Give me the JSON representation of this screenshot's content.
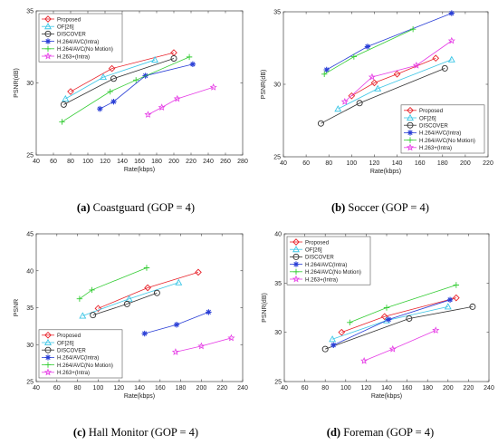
{
  "figure": {
    "captions": [
      {
        "label": "(a)",
        "text": "Coastguard (GOP = 4)"
      },
      {
        "label": "(b)",
        "text": "Soccer (GOP = 4)"
      },
      {
        "label": "(c)",
        "text": "Hall Monitor (GOP = 4)"
      },
      {
        "label": "(d)",
        "text": "Foreman (GOP = 4)"
      }
    ]
  },
  "series_styles": [
    {
      "name": "Proposed",
      "color": "#e8232b",
      "marker": "diamond"
    },
    {
      "name": "OF[26]",
      "color": "#3cc6e6",
      "marker": "triangle"
    },
    {
      "name": "DISCOVER",
      "color": "#333333",
      "marker": "circle"
    },
    {
      "name": "H.264/AVC(Intra)",
      "color": "#2a3fd6",
      "marker": "star"
    },
    {
      "name": "H.264/AVC(No Motion)",
      "color": "#33cc33",
      "marker": "plus"
    },
    {
      "name": "H.263+(Intra)",
      "color": "#e63ce6",
      "marker": "pentagram"
    }
  ],
  "chart_data": [
    {
      "type": "line",
      "title": "",
      "xlabel": "Rate(kbps)",
      "ylabel": "PSNR(dB)",
      "xlim": [
        40,
        280
      ],
      "ylim": [
        25,
        35
      ],
      "xticks": [
        "40",
        "60",
        "80",
        "100",
        "120",
        "140",
        "160",
        "180",
        "200",
        "220",
        "240",
        "260",
        "280"
      ],
      "yticks": [
        "25",
        "30",
        "35"
      ],
      "legend_position": "top-left",
      "series": [
        {
          "name": "Proposed",
          "x": [
            80,
            128,
            200
          ],
          "y": [
            29.4,
            31.0,
            32.1
          ]
        },
        {
          "name": "OF[26]",
          "x": [
            74,
            118,
            178
          ],
          "y": [
            28.9,
            30.4,
            31.6
          ]
        },
        {
          "name": "DISCOVER",
          "x": [
            72,
            130,
            200
          ],
          "y": [
            28.5,
            30.3,
            31.7
          ]
        },
        {
          "name": "H.264/AVC(Intra)",
          "x": [
            114,
            130,
            167,
            222
          ],
          "y": [
            28.2,
            28.7,
            30.5,
            31.3
          ]
        },
        {
          "name": "H.264/AVC(No Motion)",
          "x": [
            70,
            126,
            156,
            218
          ],
          "y": [
            27.3,
            29.4,
            30.2,
            31.8
          ]
        },
        {
          "name": "H.263+(Intra)",
          "x": [
            170,
            186,
            204,
            246
          ],
          "y": [
            27.8,
            28.3,
            28.9,
            29.7
          ]
        }
      ]
    },
    {
      "type": "line",
      "title": "",
      "xlabel": "Rate(kbps)",
      "ylabel": "PSNR(dB)",
      "xlim": [
        40,
        220
      ],
      "ylim": [
        25,
        35
      ],
      "xticks": [
        "40",
        "60",
        "80",
        "100",
        "120",
        "140",
        "160",
        "180",
        "200",
        "220"
      ],
      "yticks": [
        "25",
        "30",
        "35"
      ],
      "legend_position": "bottom-right",
      "series": [
        {
          "name": "Proposed",
          "x": [
            100,
            120,
            140,
            174
          ],
          "y": [
            29.2,
            30.1,
            30.7,
            31.8
          ]
        },
        {
          "name": "OF[26]",
          "x": [
            88,
            123,
            188
          ],
          "y": [
            28.3,
            29.7,
            31.7
          ]
        },
        {
          "name": "DISCOVER",
          "x": [
            73,
            107,
            182
          ],
          "y": [
            27.3,
            28.7,
            31.1
          ]
        },
        {
          "name": "H.264/AVC(Intra)",
          "x": [
            78,
            114,
            188
          ],
          "y": [
            31.0,
            32.6,
            34.9
          ]
        },
        {
          "name": "H.264/AVC(No Motion)",
          "x": [
            76,
            102,
            154
          ],
          "y": [
            30.7,
            31.9,
            33.8
          ]
        },
        {
          "name": "H.263+(Intra)",
          "x": [
            94,
            118,
            157,
            188
          ],
          "y": [
            28.8,
            30.5,
            31.3,
            33.0
          ]
        }
      ]
    },
    {
      "type": "line",
      "title": "",
      "xlabel": "Rate(kbps)",
      "ylabel": "PSNR",
      "xlim": [
        40,
        240
      ],
      "ylim": [
        25,
        45
      ],
      "xticks": [
        "40",
        "60",
        "80",
        "100",
        "120",
        "140",
        "160",
        "180",
        "200",
        "220",
        "240"
      ],
      "yticks": [
        "25",
        "30",
        "35",
        "40",
        "45"
      ],
      "legend_position": "bottom-left",
      "series": [
        {
          "name": "Proposed",
          "x": [
            100,
            148,
            197
          ],
          "y": [
            34.9,
            37.7,
            39.8
          ]
        },
        {
          "name": "OF[26]",
          "x": [
            85,
            130,
            178
          ],
          "y": [
            33.9,
            36.2,
            38.4
          ]
        },
        {
          "name": "DISCOVER",
          "x": [
            95,
            128,
            157
          ],
          "y": [
            34.0,
            35.5,
            37.0
          ]
        },
        {
          "name": "H.264/AVC(Intra)",
          "x": [
            145,
            176,
            207
          ],
          "y": [
            31.5,
            32.7,
            34.4
          ]
        },
        {
          "name": "H.264/AVC(No Motion)",
          "x": [
            82,
            94,
            147
          ],
          "y": [
            36.2,
            37.4,
            40.4
          ]
        },
        {
          "name": "H.263+(Intra)",
          "x": [
            175,
            200,
            229
          ],
          "y": [
            29.0,
            29.8,
            30.9
          ]
        }
      ]
    },
    {
      "type": "line",
      "title": "",
      "xlabel": "Rate(kbps)",
      "ylabel": "PSNR(dB)",
      "xlim": [
        40,
        240
      ],
      "ylim": [
        25,
        40
      ],
      "xticks": [
        "40",
        "60",
        "80",
        "100",
        "120",
        "140",
        "160",
        "180",
        "200",
        "220",
        "240"
      ],
      "yticks": [
        "25",
        "30",
        "35",
        "40"
      ],
      "legend_position": "top-left",
      "series": [
        {
          "name": "Proposed",
          "x": [
            96,
            138,
            208
          ],
          "y": [
            30.0,
            31.6,
            33.5
          ]
        },
        {
          "name": "OF[26]",
          "x": [
            87,
            140,
            200
          ],
          "y": [
            29.3,
            31.2,
            32.6
          ]
        },
        {
          "name": "DISCOVER",
          "x": [
            80,
            162,
            224
          ],
          "y": [
            28.3,
            31.4,
            32.6
          ]
        },
        {
          "name": "H.264/AVC(Intra)",
          "x": [
            88,
            142,
            202
          ],
          "y": [
            28.7,
            31.3,
            33.3
          ]
        },
        {
          "name": "H.264/AVC(No Motion)",
          "x": [
            104,
            140,
            208
          ],
          "y": [
            31.0,
            32.5,
            34.8
          ]
        },
        {
          "name": "H.263+(Intra)",
          "x": [
            118,
            146,
            188
          ],
          "y": [
            27.1,
            28.3,
            30.2
          ]
        }
      ]
    }
  ]
}
